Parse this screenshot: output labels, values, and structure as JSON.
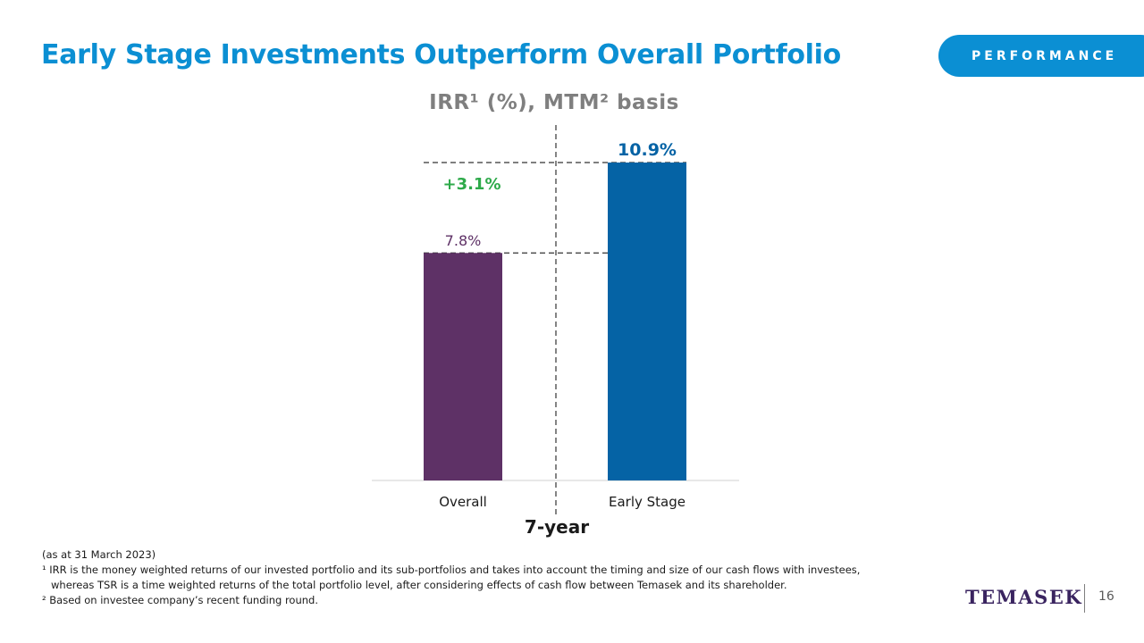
{
  "slide": {
    "title": "Early Stage Investments Outperform Overall Portfolio",
    "section_label": "PERFORMANCE",
    "period_label": "7-year",
    "notes": {
      "as_at": "(as at 31 March 2023)",
      "footnote1_line1": "¹ IRR is the money weighted returns of our invested portfolio and its sub-portfolios and takes into account the timing and size of our cash flows with investees,",
      "footnote1_line2": "whereas TSR is a time weighted returns of the total portfolio level, after considering effects of cash flow between Temasek and its shareholder.",
      "footnote2": "² Based on investee company’s recent funding round."
    },
    "brand": "TEMASEK",
    "page_number": "16"
  },
  "chart_data": {
    "type": "bar",
    "title": "IRR¹ (%), MTM² basis",
    "categories": [
      "Overall",
      "Early Stage"
    ],
    "values": [
      7.8,
      10.9
    ],
    "value_labels": [
      "7.8%",
      "10.9%"
    ],
    "colors": [
      "#5e3166",
      "#0563a5"
    ],
    "label_colors": [
      "#5e3166",
      "#0563a5"
    ],
    "difference_label": "+3.1%",
    "difference_color": "#2eaa4a",
    "ylim": [
      0,
      10.9
    ],
    "grid": false,
    "xlabel": "",
    "ylabel": ""
  }
}
